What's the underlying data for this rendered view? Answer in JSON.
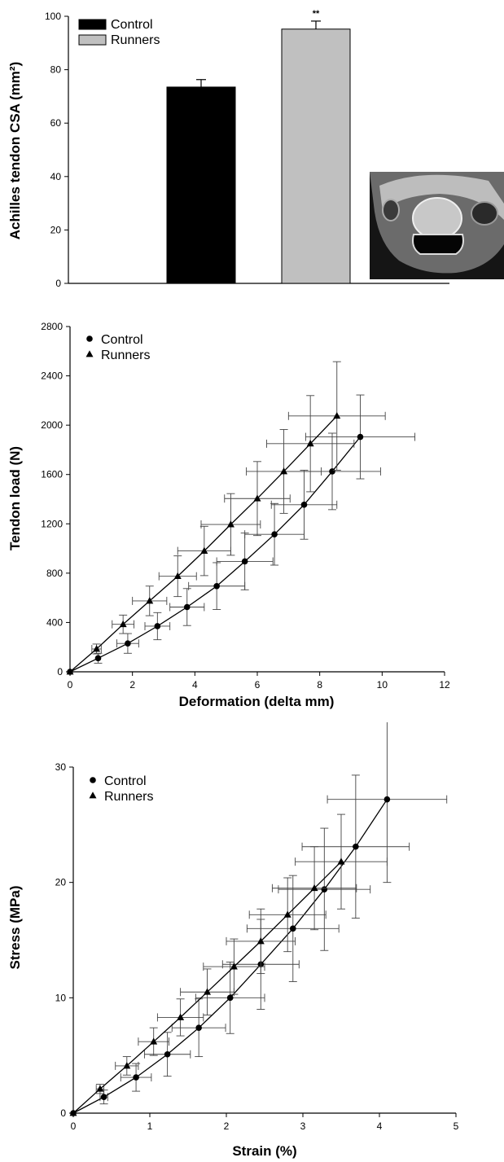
{
  "chart_data": [
    {
      "type": "bar",
      "title": "",
      "ylabel": "Achilles tendon CSA (mm²)",
      "xlabel": "",
      "ylim": [
        0,
        100
      ],
      "yticks": [
        0,
        20,
        40,
        60,
        80,
        100
      ],
      "categories": [
        "Control",
        "Runners"
      ],
      "values": [
        73.5,
        95.2
      ],
      "errors": [
        2.8,
        3.0
      ],
      "colors": [
        "#000000",
        "#c0c0c0"
      ],
      "significance": "**",
      "legend": {
        "entries": [
          "Control",
          "Runners"
        ],
        "position": "top-left"
      },
      "inset_image": "MRI cross-section of Achilles tendon"
    },
    {
      "type": "line",
      "title": "",
      "xlabel": "Deformation (delta mm)",
      "ylabel": "Tendon load (N)",
      "xlim": [
        0,
        12
      ],
      "ylim": [
        0,
        2800
      ],
      "xticks": [
        0,
        2,
        4,
        6,
        8,
        10,
        12
      ],
      "yticks": [
        0,
        400,
        800,
        1200,
        1600,
        2000,
        2400,
        2800
      ],
      "legend": {
        "position": "top-left"
      },
      "series": [
        {
          "name": "Control",
          "marker": "circle",
          "points": [
            {
              "x": 0,
              "y": 0,
              "xerr": 0,
              "yerr": 0
            },
            {
              "x": 0.9,
              "y": 110,
              "xerr": 0,
              "yerr": 40
            },
            {
              "x": 1.85,
              "y": 230,
              "xerr": 0.35,
              "yerr": 80
            },
            {
              "x": 2.8,
              "y": 370,
              "xerr": 0.4,
              "yerr": 110
            },
            {
              "x": 3.75,
              "y": 525,
              "xerr": 0.55,
              "yerr": 150
            },
            {
              "x": 4.7,
              "y": 695,
              "xerr": 0.9,
              "yerr": 190
            },
            {
              "x": 5.6,
              "y": 895,
              "xerr": 0.9,
              "yerr": 230
            },
            {
              "x": 6.55,
              "y": 1115,
              "xerr": 0.95,
              "yerr": 250
            },
            {
              "x": 7.5,
              "y": 1355,
              "xerr": 1.05,
              "yerr": 280
            },
            {
              "x": 8.4,
              "y": 1625,
              "xerr": 1.55,
              "yerr": 310
            },
            {
              "x": 9.3,
              "y": 1905,
              "xerr": 1.75,
              "yerr": 340
            }
          ]
        },
        {
          "name": "Runners",
          "marker": "triangle",
          "points": [
            {
              "x": 0,
              "y": 0,
              "xerr": 0,
              "yerr": 0
            },
            {
              "x": 0.85,
              "y": 185,
              "xerr": 0.15,
              "yerr": 40
            },
            {
              "x": 1.7,
              "y": 385,
              "xerr": 0.35,
              "yerr": 75
            },
            {
              "x": 2.55,
              "y": 575,
              "xerr": 0.55,
              "yerr": 120
            },
            {
              "x": 3.45,
              "y": 775,
              "xerr": 0.6,
              "yerr": 165
            },
            {
              "x": 4.3,
              "y": 980,
              "xerr": 0.85,
              "yerr": 200
            },
            {
              "x": 5.15,
              "y": 1195,
              "xerr": 0.95,
              "yerr": 250
            },
            {
              "x": 6,
              "y": 1405,
              "xerr": 1.05,
              "yerr": 300
            },
            {
              "x": 6.85,
              "y": 1625,
              "xerr": 1.2,
              "yerr": 340
            },
            {
              "x": 7.7,
              "y": 1850,
              "xerr": 1.4,
              "yerr": 390
            },
            {
              "x": 8.55,
              "y": 2075,
              "xerr": 1.55,
              "yerr": 440
            }
          ]
        }
      ]
    },
    {
      "type": "line",
      "title": "",
      "xlabel": "Strain (%)",
      "ylabel": "Stress (MPa)",
      "xlim": [
        0,
        5
      ],
      "ylim": [
        0,
        30
      ],
      "xticks": [
        0,
        1,
        2,
        3,
        4,
        5
      ],
      "yticks": [
        0,
        10,
        20,
        30
      ],
      "legend": {
        "position": "top-left"
      },
      "series": [
        {
          "name": "Control",
          "marker": "circle",
          "points": [
            {
              "x": 0,
              "y": 0,
              "xerr": 0,
              "yerr": 0
            },
            {
              "x": 0.4,
              "y": 1.4,
              "xerr": 0.05,
              "yerr": 0.6
            },
            {
              "x": 0.82,
              "y": 3.1,
              "xerr": 0.2,
              "yerr": 1.2
            },
            {
              "x": 1.23,
              "y": 5.1,
              "xerr": 0.3,
              "yerr": 1.9
            },
            {
              "x": 1.64,
              "y": 7.4,
              "xerr": 0.35,
              "yerr": 2.5
            },
            {
              "x": 2.05,
              "y": 10,
              "xerr": 0.45,
              "yerr": 3.1
            },
            {
              "x": 2.45,
              "y": 12.9,
              "xerr": 0.5,
              "yerr": 3.9
            },
            {
              "x": 2.87,
              "y": 16,
              "xerr": 0.6,
              "yerr": 4.6
            },
            {
              "x": 3.28,
              "y": 19.4,
              "xerr": 0.6,
              "yerr": 5.3
            },
            {
              "x": 3.69,
              "y": 23.1,
              "xerr": 0.7,
              "yerr": 6.2
            },
            {
              "x": 4.1,
              "y": 27.2,
              "xerr": 0.78,
              "yerr": 7.2
            }
          ]
        },
        {
          "name": "Runners",
          "marker": "triangle",
          "points": [
            {
              "x": 0,
              "y": 0,
              "xerr": 0,
              "yerr": 0
            },
            {
              "x": 0.35,
              "y": 2.1,
              "xerr": 0.05,
              "yerr": 0.4
            },
            {
              "x": 0.7,
              "y": 4.1,
              "xerr": 0.15,
              "yerr": 0.8
            },
            {
              "x": 1.05,
              "y": 6.2,
              "xerr": 0.2,
              "yerr": 1.2
            },
            {
              "x": 1.4,
              "y": 8.3,
              "xerr": 0.3,
              "yerr": 1.6
            },
            {
              "x": 1.75,
              "y": 10.5,
              "xerr": 0.35,
              "yerr": 2
            },
            {
              "x": 2.1,
              "y": 12.7,
              "xerr": 0.4,
              "yerr": 2.4
            },
            {
              "x": 2.45,
              "y": 14.9,
              "xerr": 0.45,
              "yerr": 2.8
            },
            {
              "x": 2.8,
              "y": 17.2,
              "xerr": 0.5,
              "yerr": 3.2
            },
            {
              "x": 3.15,
              "y": 19.5,
              "xerr": 0.55,
              "yerr": 3.6
            },
            {
              "x": 3.5,
              "y": 21.8,
              "xerr": 0.6,
              "yerr": 4.1
            }
          ]
        }
      ]
    }
  ]
}
